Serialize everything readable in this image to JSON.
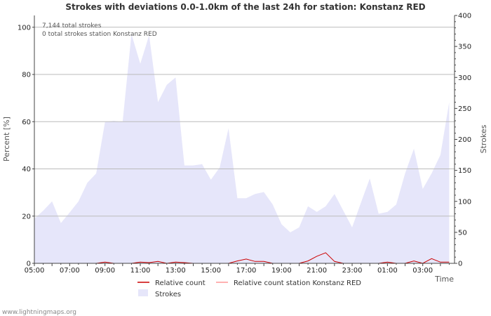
{
  "chart_data": {
    "type": "area",
    "title": "Strokes with deviations 0.0-1.0km of the last 24h for station: Konstanz RED",
    "ylabel_left": "Percent   [%]",
    "ylabel_right": "Strokes",
    "xlabel": "Time",
    "ylim_left": [
      0,
      105
    ],
    "ylim_right": [
      0,
      400
    ],
    "yticks_left": [
      "0",
      "20",
      "40",
      "60",
      "80",
      "100"
    ],
    "yticks_right": [
      "0",
      "50",
      "100",
      "150",
      "200",
      "250",
      "300",
      "350",
      "400"
    ],
    "x_range_hours": [
      0,
      23.8
    ],
    "x_ticks": [
      {
        "h": 0,
        "label": "05:00"
      },
      {
        "h": 2,
        "label": "07:00"
      },
      {
        "h": 4,
        "label": "09:00"
      },
      {
        "h": 6,
        "label": "11:00"
      },
      {
        "h": 8,
        "label": "13:00"
      },
      {
        "h": 10,
        "label": "15:00"
      },
      {
        "h": 12,
        "label": "17:00"
      },
      {
        "h": 14,
        "label": "19:00"
      },
      {
        "h": 16,
        "label": "21:00"
      },
      {
        "h": 18,
        "label": "23:00"
      },
      {
        "h": 20,
        "label": "01:00"
      },
      {
        "h": 22,
        "label": "03:00"
      }
    ],
    "info_lines": [
      "7,144 total strokes",
      "0 total strokes station Konstanz RED"
    ],
    "series": [
      {
        "name": "Strokes",
        "axis": "right",
        "color": "#e6e6fa",
        "points": [
          [
            0,
            72
          ],
          [
            0.5,
            85
          ],
          [
            1,
            100
          ],
          [
            1.5,
            65
          ],
          [
            2,
            82
          ],
          [
            2.5,
            100
          ],
          [
            3,
            130
          ],
          [
            3.5,
            145
          ],
          [
            4,
            228
          ],
          [
            4.5,
            230
          ],
          [
            5,
            228
          ],
          [
            5.5,
            370
          ],
          [
            6,
            322
          ],
          [
            6.5,
            368
          ],
          [
            7,
            260
          ],
          [
            7.5,
            288
          ],
          [
            8,
            300
          ],
          [
            8.5,
            158
          ],
          [
            9,
            158
          ],
          [
            9.5,
            160
          ],
          [
            10,
            135
          ],
          [
            10.5,
            155
          ],
          [
            11,
            218
          ],
          [
            11.5,
            105
          ],
          [
            12,
            105
          ],
          [
            12.5,
            112
          ],
          [
            13,
            115
          ],
          [
            13.5,
            95
          ],
          [
            14,
            63
          ],
          [
            14.5,
            50
          ],
          [
            15,
            58
          ],
          [
            15.5,
            92
          ],
          [
            16,
            83
          ],
          [
            16.5,
            92
          ],
          [
            17,
            112
          ],
          [
            17.5,
            85
          ],
          [
            18,
            58
          ],
          [
            18.5,
            98
          ],
          [
            19,
            137
          ],
          [
            19.5,
            80
          ],
          [
            20,
            83
          ],
          [
            20.5,
            95
          ],
          [
            21,
            145
          ],
          [
            21.5,
            185
          ],
          [
            22,
            120
          ],
          [
            22.5,
            145
          ],
          [
            23,
            175
          ],
          [
            23.5,
            260
          ]
        ]
      },
      {
        "name": "Relative count",
        "axis": "left",
        "color": "#cc0000",
        "points": [
          [
            0,
            0
          ],
          [
            3.5,
            0
          ],
          [
            4,
            0.5
          ],
          [
            4.5,
            0
          ],
          [
            5.5,
            0
          ],
          [
            6,
            0.5
          ],
          [
            6.5,
            0.3
          ],
          [
            7,
            0.8
          ],
          [
            7.5,
            0
          ],
          [
            8,
            0.5
          ],
          [
            8.5,
            0.3
          ],
          [
            9,
            0
          ],
          [
            11,
            0
          ],
          [
            11.5,
            1
          ],
          [
            12,
            1.8
          ],
          [
            12.5,
            0.8
          ],
          [
            13,
            0.8
          ],
          [
            13.5,
            0
          ],
          [
            15,
            0
          ],
          [
            15.5,
            1
          ],
          [
            16,
            3
          ],
          [
            16.5,
            4.5
          ],
          [
            17,
            0.8
          ],
          [
            17.5,
            0
          ],
          [
            19.5,
            0
          ],
          [
            20,
            0.5
          ],
          [
            20.5,
            0
          ],
          [
            21,
            0
          ],
          [
            21.5,
            1
          ],
          [
            22,
            0
          ],
          [
            22.5,
            2
          ],
          [
            23,
            0.5
          ],
          [
            23.5,
            0.5
          ]
        ]
      },
      {
        "name": "Relative count station Konstanz RED",
        "axis": "left",
        "color": "#ff9999",
        "points": []
      }
    ],
    "legend": [
      {
        "label": "Relative count",
        "swatch": "line",
        "color": "#cc0000"
      },
      {
        "label": "Relative count station Konstanz RED",
        "swatch": "line",
        "color": "#ff9999"
      },
      {
        "label": "Strokes",
        "swatch": "box",
        "color": "#e6e6fa"
      }
    ],
    "grid": true
  },
  "footer": {
    "text": "www.lightningmaps.org"
  }
}
